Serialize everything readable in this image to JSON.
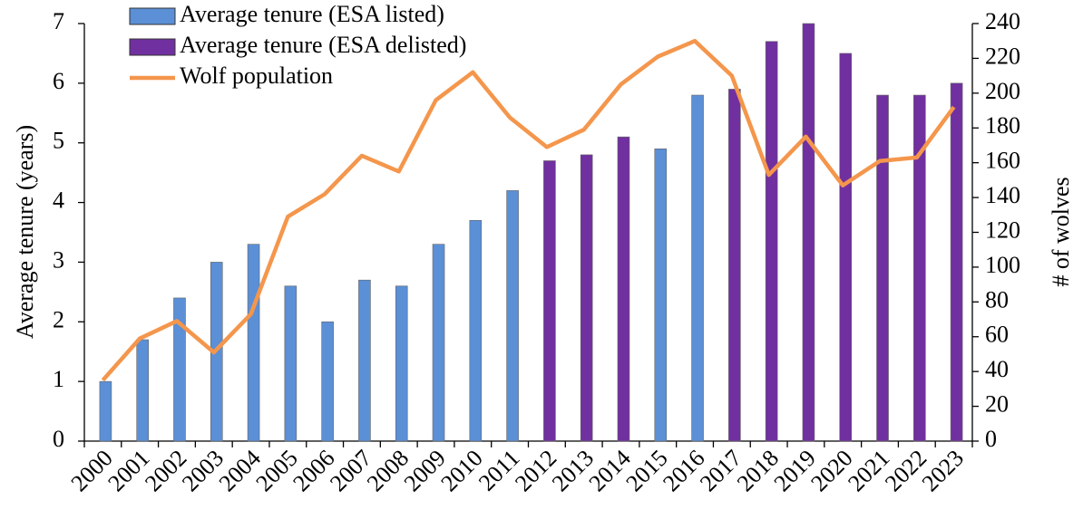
{
  "chart_data": {
    "type": "bar-line",
    "y_label": "Average tenure (years)",
    "y2_label": "# of wolves",
    "categories": [
      "2000",
      "2001",
      "2002",
      "2003",
      "2004",
      "2005",
      "2006",
      "2007",
      "2008",
      "2009",
      "2010",
      "2011",
      "2012",
      "2013",
      "2014",
      "2015",
      "2016",
      "2017",
      "2018",
      "2019",
      "2020",
      "2021",
      "2022",
      "2023"
    ],
    "series": [
      {
        "name": "Average tenure (ESA listed)",
        "type": "bar",
        "color": "#5b8fd6",
        "values": [
          1.0,
          1.7,
          2.4,
          3.0,
          3.3,
          2.6,
          2.0,
          2.7,
          2.6,
          3.3,
          3.7,
          4.2,
          null,
          null,
          null,
          4.9,
          5.8,
          null,
          null,
          null,
          null,
          null,
          null,
          null
        ]
      },
      {
        "name": "Average tenure (ESA delisted)",
        "type": "bar",
        "color": "#7030a0",
        "values": [
          null,
          null,
          null,
          null,
          null,
          null,
          null,
          null,
          null,
          null,
          null,
          null,
          4.7,
          4.8,
          5.1,
          null,
          null,
          5.9,
          6.7,
          7.0,
          6.5,
          5.8,
          5.8,
          6.0
        ]
      },
      {
        "name": "Wolf population",
        "type": "line",
        "axis": "y2",
        "color": "#f4964c",
        "values": [
          35,
          59,
          69,
          51,
          73,
          129,
          142,
          164,
          155,
          196,
          212,
          186,
          169,
          179,
          205,
          221,
          230,
          210,
          153,
          175,
          147,
          161,
          163,
          192
        ]
      }
    ],
    "ylim": [
      0,
      7
    ],
    "yticks": [
      0,
      1,
      2,
      3,
      4,
      5,
      6,
      7
    ],
    "y2lim": [
      0,
      240
    ],
    "y2ticks": [
      0,
      20,
      40,
      60,
      80,
      100,
      120,
      140,
      160,
      180,
      200,
      220,
      240
    ],
    "legend": "top-left"
  }
}
